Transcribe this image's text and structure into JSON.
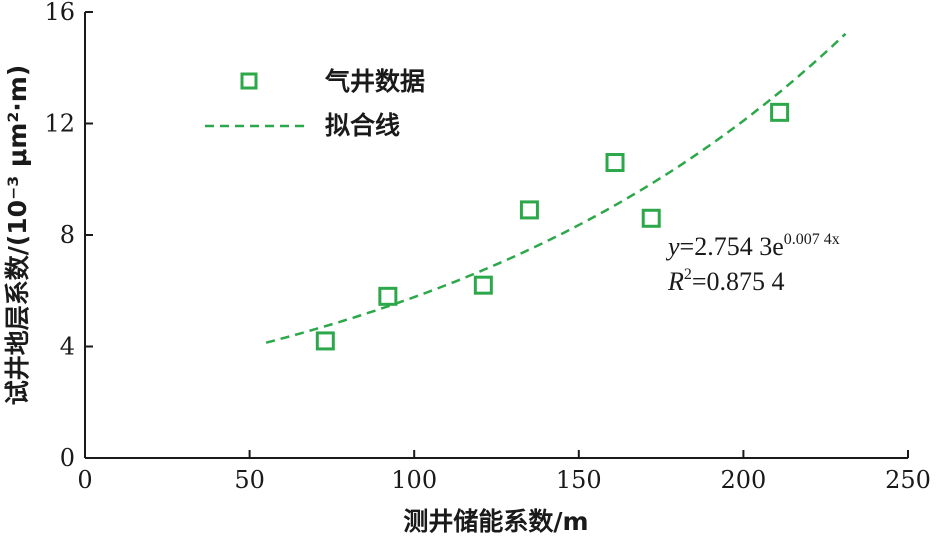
{
  "chart_data": {
    "type": "scatter",
    "xlabel": "测井储能系数/m",
    "ylabel": "试井地层系数/(10⁻³ μm²·m)",
    "xlim": [
      0,
      250
    ],
    "ylim": [
      0,
      16
    ],
    "xticks": [
      "0",
      "50",
      "100",
      "150",
      "200",
      "250"
    ],
    "yticks": [
      "0",
      "4",
      "8",
      "12",
      "16"
    ],
    "grid": false,
    "legend_position": "top-left",
    "series": [
      {
        "name": "气井数据",
        "kind": "scatter",
        "marker": "hollow-square",
        "color": "#2ca84a",
        "points": [
          {
            "x": 73,
            "y": 4.2
          },
          {
            "x": 92,
            "y": 5.8
          },
          {
            "x": 121,
            "y": 6.2
          },
          {
            "x": 135,
            "y": 8.9
          },
          {
            "x": 161,
            "y": 10.6
          },
          {
            "x": 172,
            "y": 8.6
          },
          {
            "x": 211,
            "y": 12.4
          }
        ]
      },
      {
        "name": "拟合线",
        "kind": "line",
        "style": "dashed",
        "color": "#2ca84a",
        "fit": {
          "a": 2.7543,
          "b": 0.0074,
          "x_from": 55,
          "x_to": 231
        }
      }
    ],
    "annotations": {
      "equation": {
        "y": "y",
        "eq": "=2.754 3e",
        "exp": "0.007 4x"
      },
      "r2": {
        "r": "R",
        "sup": "2",
        "value": "=0.875 4"
      }
    }
  }
}
